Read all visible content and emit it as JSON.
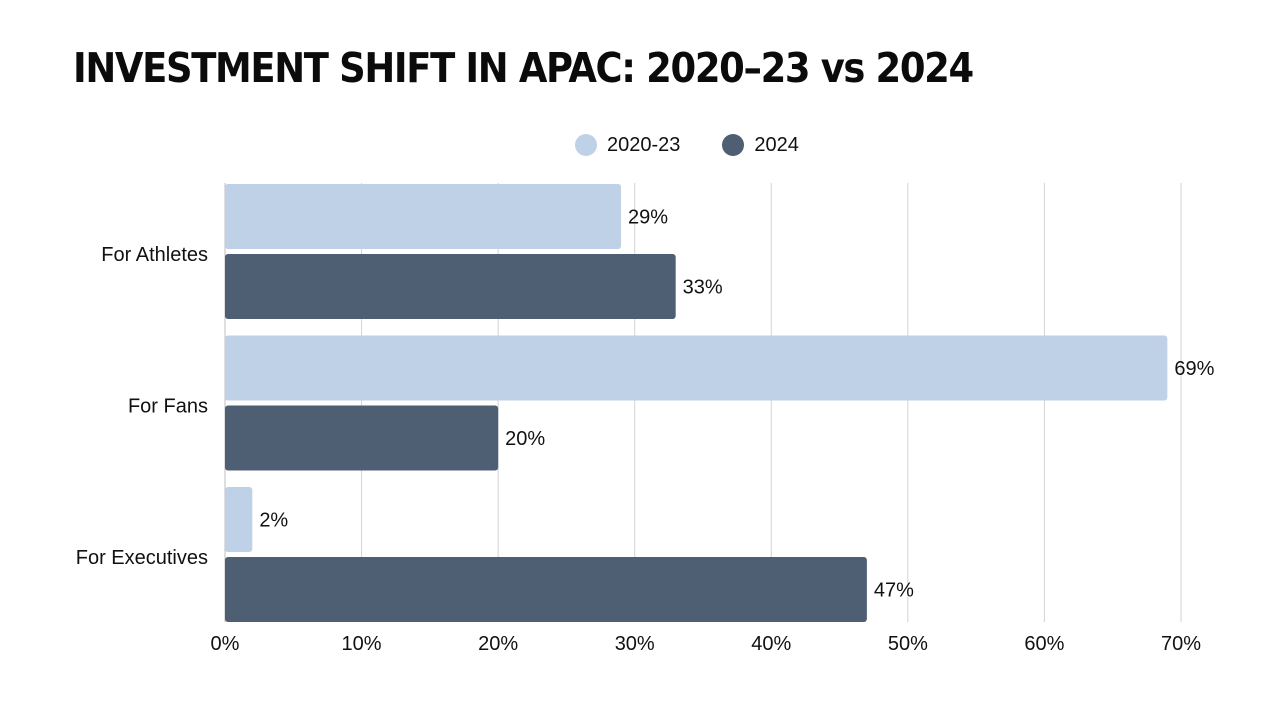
{
  "chart_data": {
    "type": "bar",
    "orientation": "horizontal",
    "title": "INVESTMENT SHIFT IN APAC: 2020–23 vs 2024",
    "categories": [
      "For Athletes",
      "For Fans",
      "For Executives"
    ],
    "series": [
      {
        "name": "2020-23",
        "values": [
          29,
          69,
          2
        ],
        "labels": [
          "29%",
          "69%",
          "2%"
        ],
        "color": "#bfd1e6"
      },
      {
        "name": "2024",
        "values": [
          33,
          20,
          47
        ],
        "labels": [
          "33%",
          "20%",
          "47%"
        ],
        "color": "#4e5e73"
      }
    ],
    "xlim": [
      0,
      70
    ],
    "xticks": [
      0,
      10,
      20,
      30,
      40,
      50,
      60,
      70
    ],
    "xtick_labels": [
      "0%",
      "10%",
      "20%",
      "30%",
      "40%",
      "50%",
      "60%",
      "70%"
    ],
    "grid": "vertical",
    "legend_position": "top-center"
  }
}
